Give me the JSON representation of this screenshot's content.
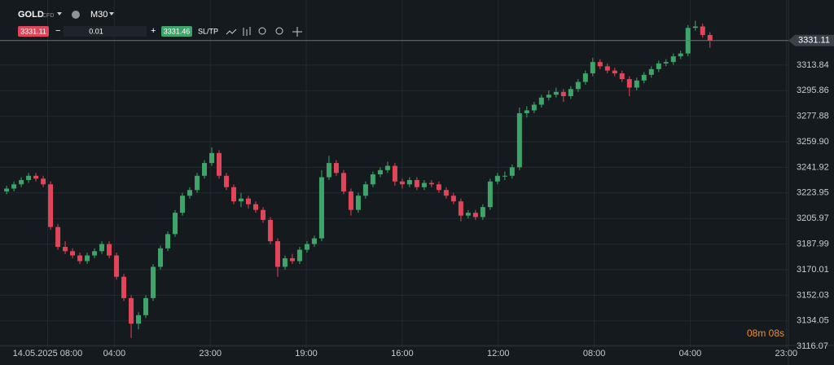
{
  "chart_data": {
    "type": "candlestick",
    "symbol": "GOLD",
    "symbol_type": "CFD",
    "timeframe": "M30",
    "bid": 3331.11,
    "lot": 0.01,
    "ask": 3331.46,
    "sl_tp": "SL/TP",
    "current_price": 3331.11,
    "countdown": "08m 08s",
    "up_color": "#3fa46a",
    "down_color": "#e0465a",
    "grid": true,
    "ylim": [
      3115,
      3359.6
    ],
    "yticks": [
      3313.84,
      3295.86,
      3277.88,
      {
        "value": 3259.9,
        "label": "3259.90"
      },
      3241.92,
      3223.95,
      3205.97,
      3187.99,
      3170.01,
      3152.03,
      3134.05,
      3116.07
    ],
    "xlim": [
      -0.9,
      106.7
    ],
    "xticks": [
      {
        "value": 5.6,
        "label": "14.05.2025 08:00"
      },
      {
        "value": 14.7,
        "label": "04:00"
      },
      {
        "value": 27.8,
        "label": "23:00"
      },
      {
        "value": 40.9,
        "label": "19:00"
      },
      {
        "value": 54,
        "label": "16:00"
      },
      {
        "value": 67.1,
        "label": "12:00"
      },
      {
        "value": 80.2,
        "label": "08:00"
      },
      {
        "value": 93.3,
        "label": "04:00"
      },
      {
        "value": 106.4,
        "label": "23:00"
      }
    ],
    "candles": [
      [
        3225,
        3229,
        3223,
        3227
      ],
      [
        3227,
        3232,
        3225,
        3230
      ],
      [
        3230,
        3235,
        3228,
        3233
      ],
      [
        3233,
        3238,
        3231,
        3236
      ],
      [
        3236,
        3238,
        3232,
        3234
      ],
      [
        3234,
        3236,
        3228,
        3230
      ],
      [
        3230,
        3232,
        3198,
        3200
      ],
      [
        3200,
        3202,
        3184,
        3186
      ],
      [
        3186,
        3190,
        3181,
        3183
      ],
      [
        3183,
        3185,
        3178,
        3180
      ],
      [
        3180,
        3182,
        3174,
        3176
      ],
      [
        3176,
        3182,
        3174,
        3180
      ],
      [
        3180,
        3185,
        3178,
        3183
      ],
      [
        3183,
        3190,
        3181,
        3188
      ],
      [
        3188,
        3190,
        3178,
        3180
      ],
      [
        3180,
        3182,
        3163,
        3165
      ],
      [
        3165,
        3167,
        3148,
        3150
      ],
      [
        3150,
        3152,
        3122,
        3132
      ],
      [
        3132,
        3140,
        3128,
        3138
      ],
      [
        3138,
        3152,
        3136,
        3150
      ],
      [
        3150,
        3174,
        3148,
        3172
      ],
      [
        3172,
        3187,
        3170,
        3185
      ],
      [
        3185,
        3197,
        3183,
        3195
      ],
      [
        3195,
        3212,
        3193,
        3210
      ],
      [
        3210,
        3224,
        3208,
        3222
      ],
      [
        3222,
        3228,
        3220,
        3226
      ],
      [
        3226,
        3238,
        3224,
        3236
      ],
      [
        3236,
        3247,
        3234,
        3245
      ],
      [
        3245,
        3256,
        3243,
        3252
      ],
      [
        3252,
        3254,
        3234,
        3236
      ],
      [
        3236,
        3238,
        3226,
        3228
      ],
      [
        3228,
        3230,
        3216,
        3218
      ],
      [
        3218,
        3224,
        3214,
        3220
      ],
      [
        3220,
        3222,
        3213,
        3216
      ],
      [
        3216,
        3218,
        3210,
        3212
      ],
      [
        3212,
        3214,
        3203,
        3205
      ],
      [
        3205,
        3207,
        3188,
        3190
      ],
      [
        3190,
        3192,
        3165,
        3172
      ],
      [
        3172,
        3180,
        3170,
        3178
      ],
      [
        3178,
        3181,
        3174,
        3176
      ],
      [
        3176,
        3186,
        3174,
        3184
      ],
      [
        3184,
        3190,
        3182,
        3188
      ],
      [
        3188,
        3194,
        3186,
        3192
      ],
      [
        3192,
        3240,
        3190,
        3235
      ],
      [
        3235,
        3250,
        3233,
        3245
      ],
      [
        3245,
        3247,
        3236,
        3238
      ],
      [
        3238,
        3240,
        3223,
        3225
      ],
      [
        3225,
        3227,
        3208,
        3212
      ],
      [
        3212,
        3224,
        3210,
        3222
      ],
      [
        3222,
        3232,
        3220,
        3230
      ],
      [
        3230,
        3239,
        3228,
        3237
      ],
      [
        3237,
        3242,
        3235,
        3240
      ],
      [
        3240,
        3246,
        3238,
        3243
      ],
      [
        3243,
        3245,
        3229,
        3232
      ],
      [
        3232,
        3234,
        3227,
        3230
      ],
      [
        3230,
        3235,
        3228,
        3233
      ],
      [
        3233,
        3235,
        3226,
        3228
      ],
      [
        3228,
        3233,
        3226,
        3231
      ],
      [
        3231,
        3233,
        3228,
        3230
      ],
      [
        3230,
        3232,
        3224,
        3226
      ],
      [
        3226,
        3228,
        3220,
        3222
      ],
      [
        3222,
        3224,
        3216,
        3218
      ],
      [
        3218,
        3220,
        3204,
        3208
      ],
      [
        3208,
        3212,
        3206,
        3210
      ],
      [
        3210,
        3212,
        3205,
        3207
      ],
      [
        3207,
        3216,
        3205,
        3214
      ],
      [
        3214,
        3234,
        3212,
        3232
      ],
      [
        3232,
        3238,
        3230,
        3236
      ],
      [
        3236,
        3239,
        3233,
        3236
      ],
      [
        3236,
        3244,
        3234,
        3242
      ],
      [
        3242,
        3284,
        3240,
        3280
      ],
      [
        3280,
        3285,
        3277,
        3282
      ],
      [
        3282,
        3288,
        3280,
        3286
      ],
      [
        3286,
        3293,
        3284,
        3291
      ],
      [
        3291,
        3296,
        3289,
        3293
      ],
      [
        3293,
        3298,
        3291,
        3295
      ],
      [
        3295,
        3297,
        3288,
        3292
      ],
      [
        3292,
        3299,
        3290,
        3297
      ],
      [
        3297,
        3304,
        3295,
        3302
      ],
      [
        3302,
        3310,
        3300,
        3308
      ],
      [
        3308,
        3319,
        3306,
        3316
      ],
      [
        3316,
        3318,
        3311,
        3313
      ],
      [
        3313,
        3315,
        3308,
        3310
      ],
      [
        3310,
        3312,
        3306,
        3308
      ],
      [
        3308,
        3310,
        3302,
        3304
      ],
      [
        3304,
        3306,
        3292,
        3298
      ],
      [
        3298,
        3305,
        3296,
        3303
      ],
      [
        3303,
        3309,
        3301,
        3307
      ],
      [
        3307,
        3313,
        3305,
        3311
      ],
      [
        3311,
        3317,
        3309,
        3315
      ],
      [
        3315,
        3318,
        3313,
        3316
      ],
      [
        3316,
        3322,
        3314,
        3320
      ],
      [
        3320,
        3324,
        3318,
        3322
      ],
      [
        3322,
        3342,
        3320,
        3340
      ],
      [
        3340,
        3345,
        3338,
        3341
      ],
      [
        3341,
        3343,
        3333,
        3335
      ],
      [
        3335,
        3337,
        3326,
        3331.11
      ]
    ]
  }
}
